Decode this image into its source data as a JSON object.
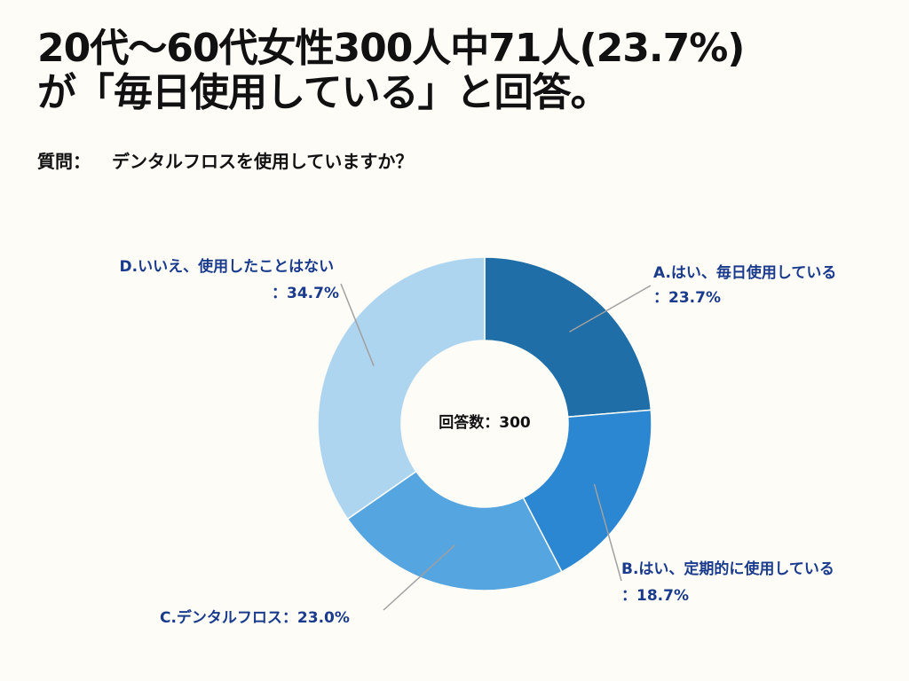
{
  "title": {
    "line1": "20代〜60代女性300人中71人(23.7%)",
    "line2": "が「毎日使用している」と回答。"
  },
  "question": {
    "prefix": "質問：",
    "text": "デンタルフロスを使用していますか？"
  },
  "chart_data": {
    "type": "pie",
    "donut": true,
    "center_label": "回答数：300",
    "categories": [
      "A.はい、毎日使用している",
      "B.はい、定期的に使用している",
      "C.デンタルフロス",
      "D.いいえ、使用したことはない"
    ],
    "values": [
      23.7,
      18.7,
      23.0,
      34.7
    ],
    "value_labels": [
      "：23.7%",
      "：18.7%",
      "：23.0%",
      "：34.7%"
    ],
    "colors": [
      "#1f6ea7",
      "#2b87d1",
      "#55a5e0",
      "#aed5f0"
    ],
    "label_color": "#1a3b8c"
  }
}
